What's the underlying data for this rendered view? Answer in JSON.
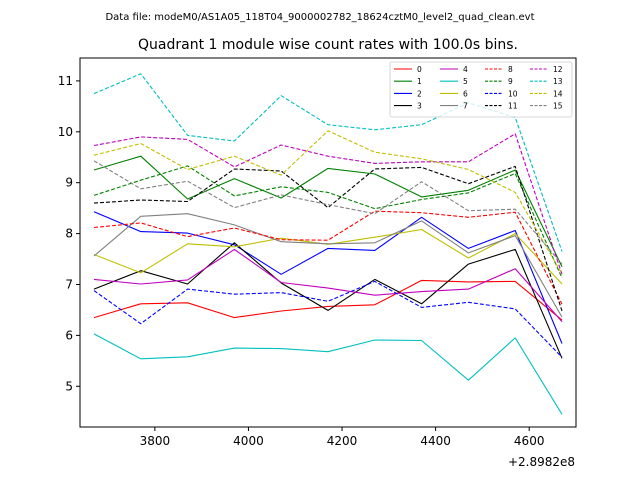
{
  "figure": {
    "suptitle": "Data file: modeM0/AS1A05_118T04_9000002782_18624cztM0_level2_quad_clean.evt"
  },
  "chart_data": {
    "type": "line",
    "title": "Quadrant 1 module wise count rates with 100.0s bins.",
    "xlabel": "",
    "ylabel": "",
    "x_offset_label": "+2.8982e8",
    "xlim": [
      3640,
      4700
    ],
    "ylim": [
      4.2,
      11.45
    ],
    "x_ticks": [
      3800,
      4000,
      4200,
      4400,
      4600
    ],
    "y_ticks": [
      5,
      6,
      7,
      8,
      9,
      10,
      11
    ],
    "x": [
      3670,
      3770,
      3870,
      3970,
      4070,
      4170,
      4270,
      4370,
      4470,
      4570,
      4670
    ],
    "legend_location": "top-right",
    "series": [
      {
        "name": "0",
        "color": "#ff0000",
        "dash": "solid",
        "values": [
          6.35,
          6.62,
          6.64,
          6.35,
          6.48,
          6.57,
          6.6,
          7.08,
          7.05,
          7.06,
          6.3
        ]
      },
      {
        "name": "1",
        "color": "#008000",
        "dash": "solid",
        "values": [
          9.25,
          9.52,
          8.68,
          9.08,
          8.7,
          9.28,
          9.17,
          8.72,
          8.85,
          9.25,
          7.35
        ]
      },
      {
        "name": "2",
        "color": "#0000ff",
        "dash": "solid",
        "values": [
          8.43,
          8.04,
          8.01,
          7.78,
          7.2,
          7.71,
          7.67,
          8.32,
          7.71,
          8.06,
          5.84
        ]
      },
      {
        "name": "3",
        "color": "#000000",
        "dash": "solid",
        "values": [
          6.91,
          7.27,
          7.01,
          7.82,
          7.03,
          6.49,
          7.1,
          6.62,
          7.4,
          7.69,
          5.55
        ]
      },
      {
        "name": "4",
        "color": "#bf00bf",
        "dash": "solid",
        "values": [
          7.1,
          7.01,
          7.09,
          7.69,
          7.04,
          6.93,
          6.79,
          6.86,
          6.91,
          7.31,
          6.27
        ]
      },
      {
        "name": "5",
        "color": "#00bfbf",
        "dash": "solid",
        "values": [
          6.03,
          5.54,
          5.58,
          5.75,
          5.74,
          5.68,
          5.91,
          5.9,
          5.12,
          5.95,
          4.45
        ]
      },
      {
        "name": "6",
        "color": "#bfbf00",
        "dash": "solid",
        "values": [
          7.59,
          7.23,
          7.8,
          7.74,
          7.91,
          7.79,
          7.93,
          8.08,
          7.52,
          8.0,
          7.01
        ]
      },
      {
        "name": "7",
        "color": "#808080",
        "dash": "solid",
        "values": [
          7.56,
          8.34,
          8.39,
          8.17,
          7.84,
          7.8,
          7.82,
          8.25,
          7.62,
          7.96,
          6.36
        ]
      },
      {
        "name": "8",
        "color": "#ff0000",
        "dash": "dashed",
        "values": [
          8.12,
          8.21,
          7.94,
          8.11,
          7.88,
          7.87,
          8.44,
          8.41,
          8.32,
          8.42,
          6.61
        ]
      },
      {
        "name": "9",
        "color": "#008000",
        "dash": "dashed",
        "values": [
          8.75,
          9.05,
          9.33,
          8.74,
          8.92,
          8.81,
          8.49,
          8.67,
          8.8,
          9.18,
          7.13
        ]
      },
      {
        "name": "10",
        "color": "#0000ff",
        "dash": "dashed",
        "values": [
          6.88,
          6.23,
          6.91,
          6.81,
          6.84,
          6.67,
          7.06,
          6.55,
          6.65,
          6.52,
          5.57
        ]
      },
      {
        "name": "11",
        "color": "#000000",
        "dash": "dashed",
        "values": [
          8.6,
          8.66,
          8.63,
          9.27,
          9.23,
          8.51,
          9.27,
          9.3,
          8.98,
          9.32,
          6.48
        ]
      },
      {
        "name": "12",
        "color": "#bf00bf",
        "dash": "dashed",
        "values": [
          9.73,
          9.9,
          9.85,
          9.31,
          9.74,
          9.52,
          9.38,
          9.41,
          9.41,
          9.96,
          7.2
        ]
      },
      {
        "name": "13",
        "color": "#00bfbf",
        "dash": "dashed",
        "values": [
          10.75,
          11.14,
          9.93,
          9.82,
          10.71,
          10.14,
          10.04,
          10.14,
          10.57,
          10.28,
          7.65
        ]
      },
      {
        "name": "14",
        "color": "#bfbf00",
        "dash": "dashed",
        "values": [
          9.54,
          9.77,
          9.26,
          9.52,
          9.15,
          10.02,
          9.6,
          9.47,
          9.26,
          8.81,
          7.2
        ]
      },
      {
        "name": "15",
        "color": "#808080",
        "dash": "dashed",
        "values": [
          9.43,
          8.88,
          9.03,
          8.51,
          8.76,
          8.57,
          8.39,
          9.02,
          8.45,
          8.48,
          7.4
        ]
      }
    ]
  }
}
